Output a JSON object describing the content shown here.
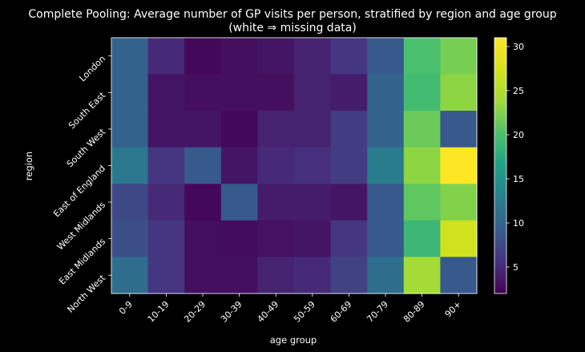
{
  "chart_data": {
    "type": "heatmap",
    "title_line1": "Complete Pooling: Average number of GP visits per person, stratified by region and age group",
    "title_line2": "(white ⇒ missing data)",
    "xlabel": "age group",
    "ylabel": "region",
    "x_categories": [
      "0-9",
      "10-19",
      "20-29",
      "30-39",
      "40-49",
      "50-59",
      "60-69",
      "70-79",
      "80-89",
      "90+"
    ],
    "y_categories": [
      "London",
      "South East",
      "South West",
      "East of England",
      "West Midlands",
      "East Midlands",
      "North West"
    ],
    "values": [
      [
        10.0,
        5.0,
        2.5,
        3.0,
        3.5,
        4.5,
        6.0,
        9.0,
        20.0,
        22.0
      ],
      [
        10.0,
        3.5,
        3.0,
        3.0,
        3.0,
        4.5,
        4.0,
        10.0,
        19.5,
        23.0
      ],
      [
        10.0,
        3.5,
        3.5,
        2.5,
        4.5,
        4.5,
        6.5,
        10.0,
        21.5,
        9.0
      ],
      [
        12.0,
        6.0,
        9.0,
        3.5,
        5.0,
        5.5,
        6.5,
        12.5,
        23.0,
        31.0
      ],
      [
        7.5,
        5.0,
        2.5,
        9.0,
        4.0,
        4.0,
        3.5,
        9.0,
        21.0,
        22.5
      ],
      [
        8.0,
        6.0,
        3.0,
        2.8,
        3.2,
        3.5,
        6.0,
        9.0,
        19.0,
        27.0
      ],
      [
        11.0,
        6.0,
        3.0,
        3.0,
        4.5,
        5.0,
        7.0,
        11.0,
        24.0,
        9.0
      ]
    ],
    "vmin": 2,
    "vmax": 31,
    "colorbar_ticks": [
      5,
      10,
      15,
      20,
      25,
      30
    ],
    "colormap": "viridis",
    "colors": {
      "background": "#000000",
      "text": "#ffffff"
    }
  }
}
